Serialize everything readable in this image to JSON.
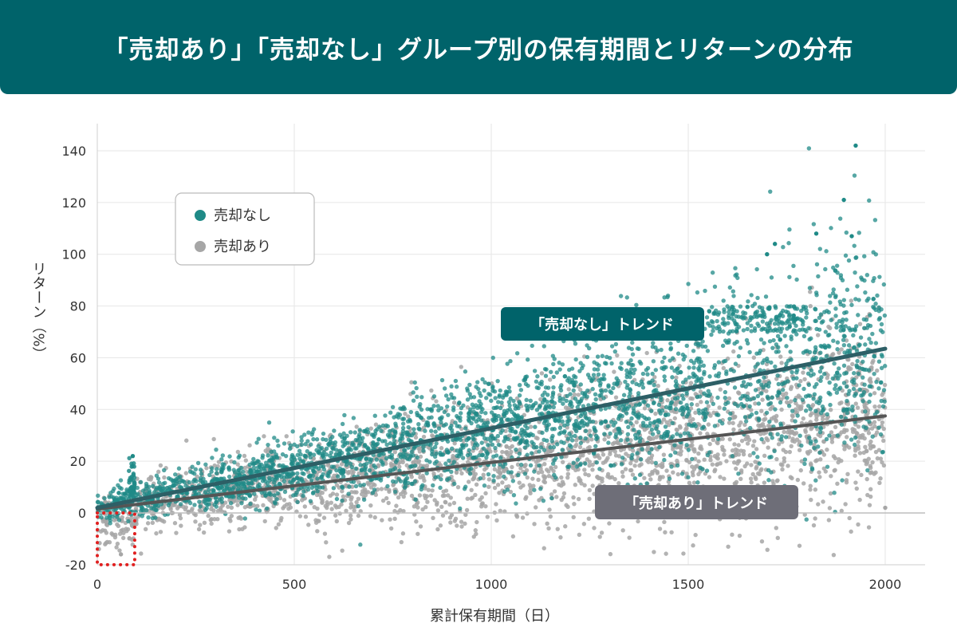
{
  "title": "「売却あり」「売却なし」グループ別の保有期間とリターンの分布",
  "colors": {
    "header_bg": "#00636a",
    "no_sale": "#1f8a87",
    "sold": "#a6a6a6",
    "trend_no_sale": "#2d5f66",
    "trend_sold": "#555555",
    "label_no_sale_bg": "#00636a",
    "label_sold_bg": "#6e6e78",
    "highlight_box": "#e02020"
  },
  "chart_data": {
    "type": "scatter",
    "xlabel": "累計保有期間（日）",
    "ylabel": "リターン（%）",
    "xlim": [
      0,
      2100
    ],
    "ylim": [
      -20,
      150
    ],
    "xticks": [
      0,
      500,
      1000,
      1500,
      2000
    ],
    "yticks": [
      -20,
      0,
      20,
      40,
      60,
      80,
      100,
      120,
      140
    ],
    "grid": true,
    "legend_position": "top-left",
    "legend": [
      "売却なし",
      "売却あり"
    ],
    "series": [
      {
        "name": "売却なし",
        "color": "#1f8a87",
        "x_range": [
          0,
          2000
        ],
        "trend": {
          "x": [
            0,
            2000
          ],
          "y": [
            2,
            63.5
          ]
        },
        "notable_points": [
          {
            "x": 1925,
            "y": 142
          },
          {
            "x": 1895,
            "y": 121
          },
          {
            "x": 1915,
            "y": 107
          },
          {
            "x": 1825,
            "y": 108
          },
          {
            "x": 1720,
            "y": 104
          },
          {
            "x": 1700,
            "y": 100
          },
          {
            "x": 90,
            "y": 22
          }
        ]
      },
      {
        "name": "売却あり",
        "color": "#a6a6a6",
        "x_range": [
          0,
          2000
        ],
        "trend": {
          "x": [
            0,
            2000
          ],
          "y": [
            1.5,
            37.5
          ]
        },
        "notable_points": [
          {
            "x": 60,
            "y": -16
          },
          {
            "x": 2000,
            "y": 2
          }
        ]
      }
    ],
    "annotations": [
      {
        "text": "「売却なし」トレンド",
        "series": "売却なし"
      },
      {
        "text": "「売却あり」トレンド",
        "series": "売却あり"
      }
    ],
    "highlight_region": {
      "x": [
        0,
        95
      ],
      "y": [
        -20,
        0
      ]
    }
  }
}
